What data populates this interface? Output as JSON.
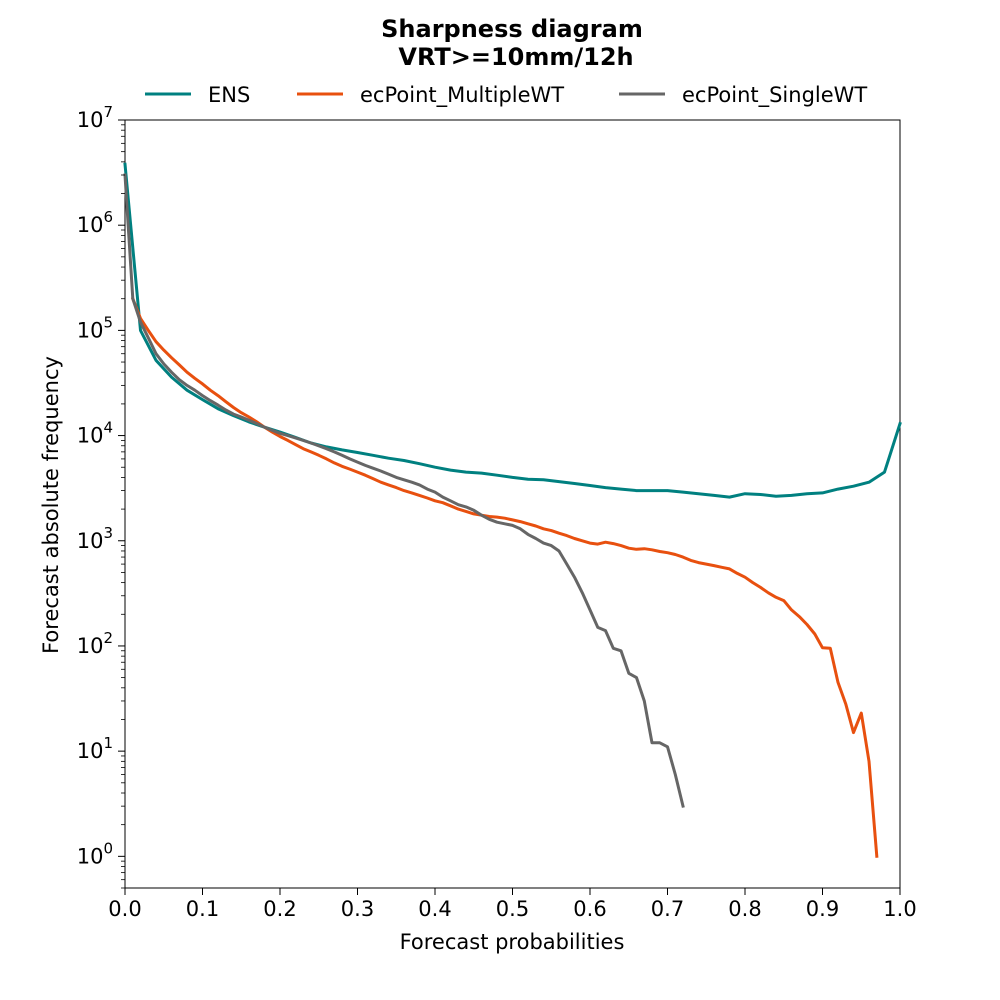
{
  "chart_data": {
    "type": "line",
    "title": "Sharpness diagram",
    "subtitle": "VRT>=10mm/12h",
    "xlabel": "Forecast probabilities",
    "ylabel": "Forecast absolute frequency",
    "xlim": [
      0.0,
      1.0
    ],
    "ylim": [
      0.5,
      10000000
    ],
    "yscale": "log",
    "grid": false,
    "legend_position": "top",
    "xticks": [
      "0.0",
      "0.1",
      "0.2",
      "0.3",
      "0.4",
      "0.5",
      "0.6",
      "0.7",
      "0.8",
      "0.9",
      "1.0"
    ],
    "yticks": [
      {
        "base": "10",
        "exp": "0",
        "value": 1
      },
      {
        "base": "10",
        "exp": "1",
        "value": 10
      },
      {
        "base": "10",
        "exp": "2",
        "value": 100
      },
      {
        "base": "10",
        "exp": "3",
        "value": 1000
      },
      {
        "base": "10",
        "exp": "4",
        "value": 10000
      },
      {
        "base": "10",
        "exp": "5",
        "value": 100000
      },
      {
        "base": "10",
        "exp": "6",
        "value": 1000000
      },
      {
        "base": "10",
        "exp": "7",
        "value": 10000000
      }
    ],
    "series": [
      {
        "name": "ENS",
        "color": "#008080",
        "x": [
          0.0,
          0.02,
          0.04,
          0.06,
          0.08,
          0.1,
          0.12,
          0.14,
          0.16,
          0.18,
          0.2,
          0.22,
          0.24,
          0.26,
          0.28,
          0.3,
          0.32,
          0.34,
          0.36,
          0.38,
          0.4,
          0.42,
          0.44,
          0.46,
          0.48,
          0.5,
          0.52,
          0.54,
          0.56,
          0.58,
          0.6,
          0.62,
          0.64,
          0.66,
          0.68,
          0.7,
          0.72,
          0.74,
          0.76,
          0.78,
          0.8,
          0.82,
          0.84,
          0.86,
          0.88,
          0.9,
          0.92,
          0.94,
          0.96,
          0.98,
          1.0
        ],
        "y": [
          3800000,
          100000,
          52000,
          36000,
          27000,
          22000,
          18000,
          15500,
          13500,
          12000,
          10800,
          9600,
          8500,
          7800,
          7300,
          6900,
          6500,
          6100,
          5800,
          5400,
          5000,
          4700,
          4500,
          4400,
          4200,
          4000,
          3850,
          3800,
          3650,
          3500,
          3350,
          3200,
          3100,
          3000,
          3000,
          3000,
          2900,
          2800,
          2700,
          2600,
          2800,
          2750,
          2650,
          2700,
          2800,
          2850,
          3100,
          3300,
          3600,
          4500,
          13000
        ]
      },
      {
        "name": "ecPoint_MultipleWT",
        "color": "#E8500F",
        "x": [
          0.01,
          0.02,
          0.03,
          0.04,
          0.05,
          0.06,
          0.07,
          0.08,
          0.09,
          0.1,
          0.11,
          0.12,
          0.13,
          0.14,
          0.15,
          0.16,
          0.17,
          0.18,
          0.19,
          0.2,
          0.21,
          0.22,
          0.23,
          0.24,
          0.25,
          0.26,
          0.27,
          0.28,
          0.29,
          0.3,
          0.31,
          0.32,
          0.33,
          0.34,
          0.35,
          0.36,
          0.37,
          0.38,
          0.39,
          0.4,
          0.41,
          0.42,
          0.43,
          0.44,
          0.45,
          0.46,
          0.47,
          0.48,
          0.49,
          0.5,
          0.51,
          0.52,
          0.53,
          0.54,
          0.55,
          0.56,
          0.57,
          0.58,
          0.59,
          0.6,
          0.61,
          0.62,
          0.63,
          0.64,
          0.65,
          0.66,
          0.67,
          0.68,
          0.69,
          0.7,
          0.71,
          0.72,
          0.73,
          0.74,
          0.75,
          0.76,
          0.77,
          0.78,
          0.79,
          0.8,
          0.81,
          0.82,
          0.83,
          0.84,
          0.85,
          0.86,
          0.87,
          0.88,
          0.89,
          0.9,
          0.91,
          0.92,
          0.93,
          0.94,
          0.95,
          0.96,
          0.97
        ],
        "y": [
          200000,
          130000,
          100000,
          78000,
          65000,
          55000,
          47000,
          40000,
          35000,
          31000,
          27000,
          24000,
          21000,
          18500,
          16500,
          15000,
          13500,
          12000,
          10800,
          9800,
          9000,
          8200,
          7500,
          7000,
          6500,
          6000,
          5500,
          5100,
          4800,
          4500,
          4200,
          3900,
          3600,
          3400,
          3200,
          3000,
          2850,
          2700,
          2550,
          2400,
          2300,
          2150,
          2000,
          1900,
          1800,
          1750,
          1700,
          1680,
          1640,
          1580,
          1520,
          1450,
          1380,
          1300,
          1250,
          1180,
          1120,
          1050,
          1000,
          950,
          930,
          970,
          940,
          900,
          850,
          830,
          840,
          820,
          790,
          770,
          740,
          700,
          650,
          620,
          600,
          580,
          560,
          540,
          490,
          450,
          400,
          360,
          320,
          290,
          270,
          220,
          190,
          160,
          130,
          96,
          95,
          45,
          28,
          15,
          23,
          8,
          1
        ]
      },
      {
        "name": "ecPoint_SingleWT",
        "color": "#666666",
        "x": [
          0.0,
          0.01,
          0.02,
          0.03,
          0.04,
          0.05,
          0.06,
          0.07,
          0.08,
          0.09,
          0.1,
          0.11,
          0.12,
          0.13,
          0.14,
          0.15,
          0.16,
          0.17,
          0.18,
          0.19,
          0.2,
          0.21,
          0.22,
          0.23,
          0.24,
          0.25,
          0.26,
          0.27,
          0.28,
          0.29,
          0.3,
          0.31,
          0.32,
          0.33,
          0.34,
          0.35,
          0.36,
          0.37,
          0.38,
          0.39,
          0.4,
          0.41,
          0.42,
          0.43,
          0.44,
          0.45,
          0.46,
          0.47,
          0.48,
          0.49,
          0.5,
          0.51,
          0.52,
          0.53,
          0.54,
          0.55,
          0.56,
          0.57,
          0.58,
          0.59,
          0.6,
          0.61,
          0.62,
          0.63,
          0.64,
          0.65,
          0.66,
          0.67,
          0.68,
          0.69,
          0.7,
          0.71,
          0.72
        ],
        "y": [
          3000000,
          200000,
          120000,
          85000,
          60000,
          48000,
          40000,
          34000,
          30000,
          27000,
          24000,
          21500,
          19500,
          17500,
          16000,
          15000,
          14000,
          13000,
          12000,
          11200,
          10500,
          10000,
          9500,
          9000,
          8500,
          8000,
          7500,
          7000,
          6500,
          6000,
          5600,
          5200,
          4900,
          4600,
          4300,
          4000,
          3800,
          3600,
          3400,
          3100,
          2900,
          2600,
          2400,
          2200,
          2100,
          1950,
          1750,
          1600,
          1500,
          1450,
          1400,
          1300,
          1150,
          1050,
          950,
          900,
          800,
          600,
          450,
          320,
          220,
          150,
          140,
          95,
          90,
          55,
          50,
          30,
          12,
          12,
          11,
          6,
          3
        ]
      }
    ]
  }
}
